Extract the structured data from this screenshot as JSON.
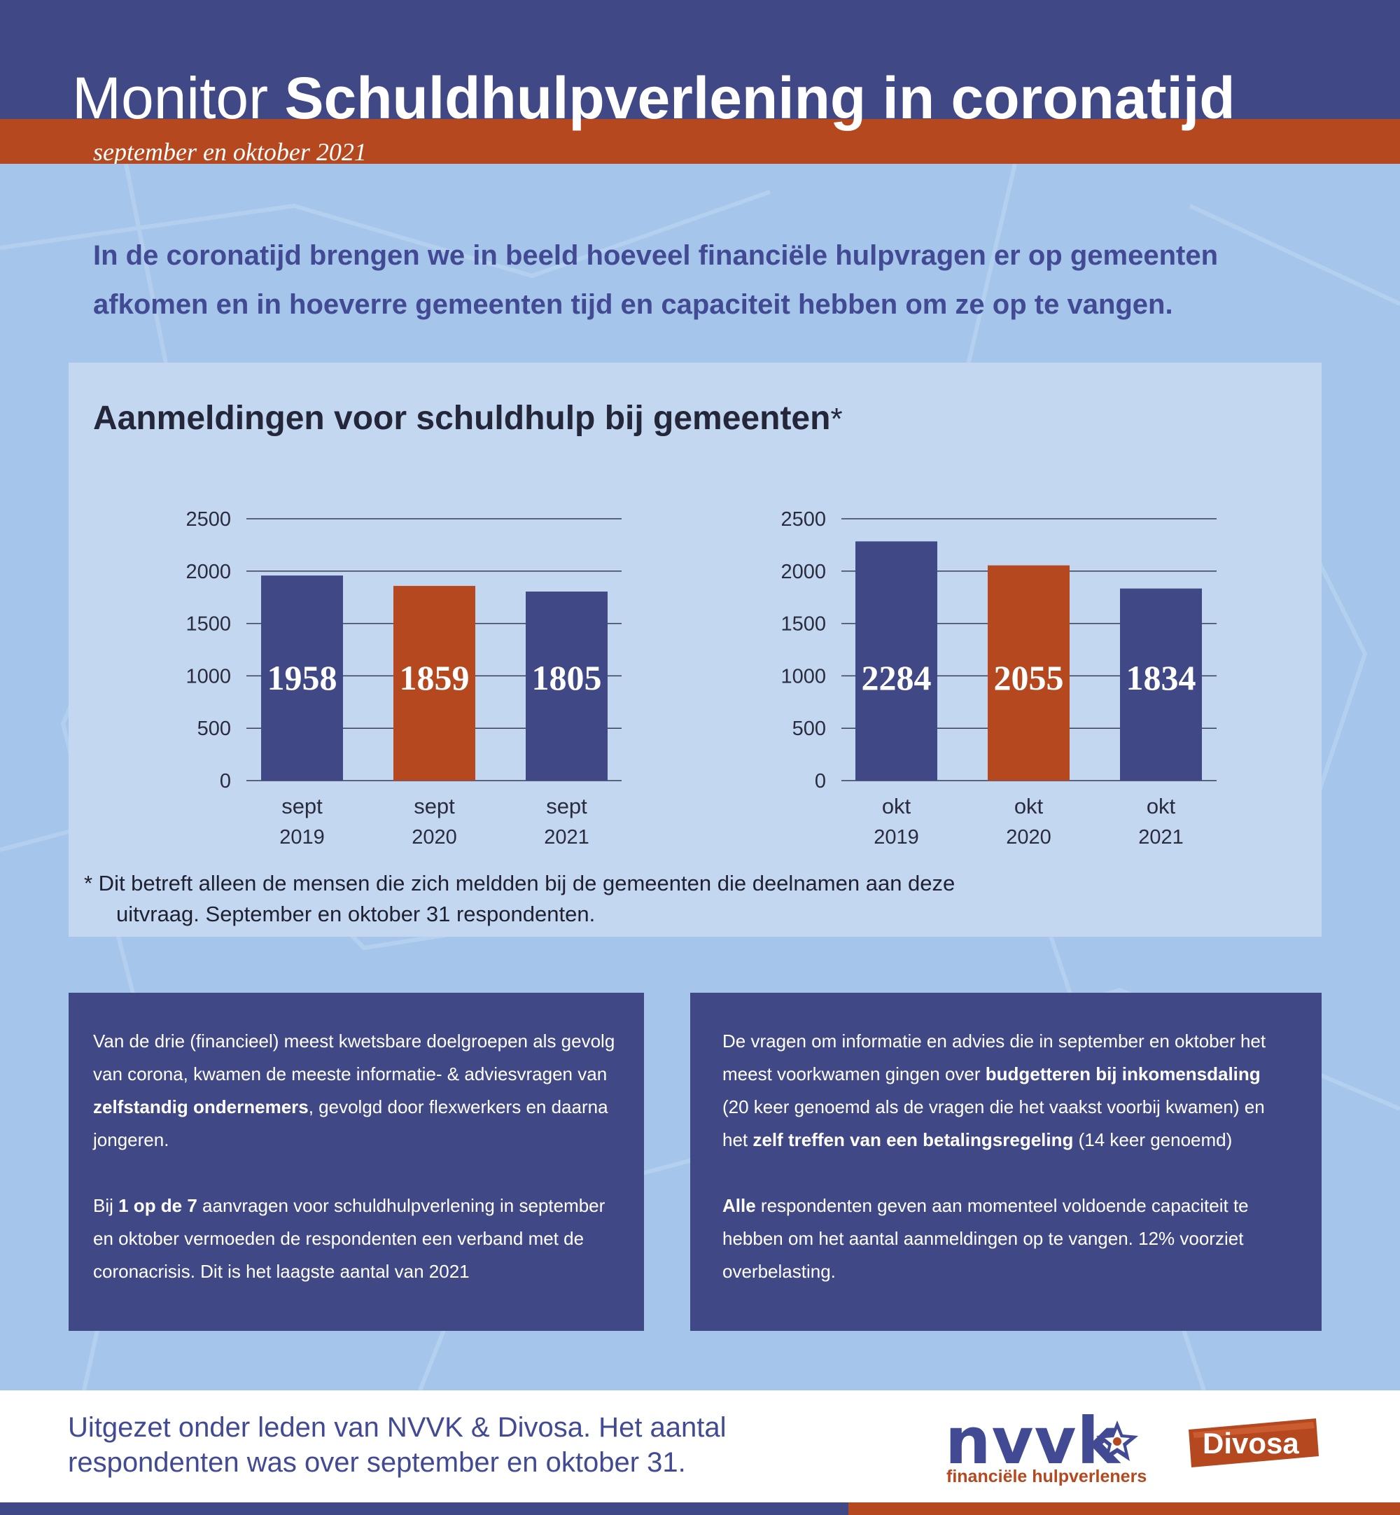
{
  "header": {
    "title_light": "Monitor",
    "title_bold": "Schuldhulpverlening in coronatijd",
    "subtitle": "september en oktober 2021"
  },
  "intro": "In de coronatijd brengen we in beeld hoeveel financiële hulpvragen er op gemeenten afkomen en in hoeverre gemeenten tijd en capaciteit hebben om ze op te vangen.",
  "chart_section": {
    "title": "Aanmeldingen voor schuldhulp bij gemeenten",
    "title_mark": "*",
    "footnote_line1": "* Dit betreft alleen de mensen die zich meldden bij de gemeenten die deelnamen aan deze",
    "footnote_line2": "uitvraag. September en oktober 31 respondenten."
  },
  "chart_data": [
    {
      "type": "bar",
      "categories": [
        "sept 2019",
        "sept 2020",
        "sept 2021"
      ],
      "category_lines": [
        [
          "sept",
          "2019"
        ],
        [
          "sept",
          "2020"
        ],
        [
          "sept",
          "2021"
        ]
      ],
      "values": [
        1958,
        1859,
        1805
      ],
      "value_labels": [
        "1958",
        "1859",
        "1805"
      ],
      "bar_colors": [
        "#404885",
        "#b5481f",
        "#404885"
      ],
      "ylim": [
        0,
        2500
      ],
      "yticks": [
        0,
        500,
        1000,
        1500,
        2000,
        2500
      ],
      "grid": true
    },
    {
      "type": "bar",
      "categories": [
        "okt 2019",
        "okt 2020",
        "okt 2021"
      ],
      "category_lines": [
        [
          "okt",
          "2019"
        ],
        [
          "okt",
          "2020"
        ],
        [
          "okt",
          "2021"
        ]
      ],
      "values": [
        2284,
        2055,
        1834
      ],
      "value_labels": [
        "2284",
        "2055",
        "1834"
      ],
      "bar_colors": [
        "#404885",
        "#b5481f",
        "#404885"
      ],
      "ylim": [
        0,
        2500
      ],
      "yticks": [
        0,
        500,
        1000,
        1500,
        2000,
        2500
      ],
      "grid": true
    }
  ],
  "box_left": {
    "p1_a": "Van de drie (financieel) meest kwetsbare doelgroepen als gevolg van corona, kwamen de meeste informatie- & adviesvragen van ",
    "p1_b": "zelfstandig ondernemers",
    "p1_c": ", gevolgd door flexwerkers en daarna jongeren.",
    "p2_a": "Bij ",
    "p2_b": "1 op de 7",
    "p2_c": " aanvragen voor schuldhulpverlening  in september en oktober vermoeden de respondenten een verband met de coronacrisis. Dit is het laagste aantal van 2021"
  },
  "box_right": {
    "p1_a": "De vragen om informatie en advies die in september en oktober het meest voorkwamen gingen over ",
    "p1_b": "budgetteren bij inkomensdaling",
    "p1_c": " (20 keer genoemd als de vragen die het vaakst voorbij kwamen)  en het ",
    "p1_d": "zelf treffen van een betalingsregeling",
    "p1_e": " (14 keer genoemd)",
    "p2_a": "Alle",
    "p2_b": " respondenten geven aan momenteel voldoende capaciteit te hebben om het aantal aanmeldingen op te vangen. 12% voorziet overbelasting."
  },
  "footer": {
    "text": "Uitgezet onder leden van NVVK & Divosa. Het aantal respondenten was over september en oktober 31.",
    "nvvk_word": "nvvk",
    "nvvk_tagline": "financiële hulpverleners",
    "divosa_word": "Divosa"
  },
  "colors": {
    "navy": "#404885",
    "orange": "#b5481f",
    "light_blue": "#a6c5ea",
    "panel": "#c3d7f1"
  }
}
